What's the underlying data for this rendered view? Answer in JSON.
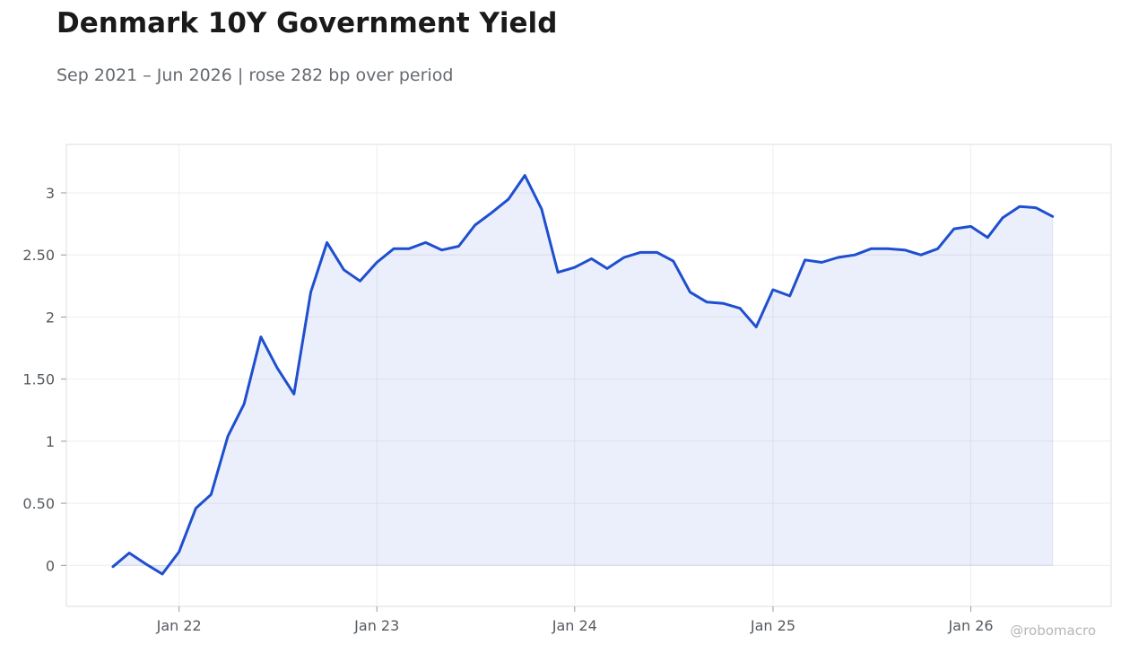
{
  "title": "Denmark 10Y Government Yield",
  "subtitle": "Sep 2021 – Jun 2026 | rose 282 bp over period",
  "watermark": "@robomacro",
  "colors": {
    "line": "#1f4fcf",
    "fill": "#1f4fcf",
    "grid": "#eeeeee",
    "frame": "#dddddd"
  },
  "chart_data": {
    "type": "area",
    "title": "Denmark 10Y Government Yield",
    "xlabel": "",
    "ylabel": "",
    "ylim": [
      -0.33,
      3.39
    ],
    "xlim": [
      "2021-06-07",
      "2026-09-17"
    ],
    "grid": true,
    "yticks": [
      0,
      0.5,
      1,
      1.5,
      2,
      2.5,
      3
    ],
    "ytick_labels": [
      "0",
      "0.50",
      "1",
      "1.50",
      "2",
      "2.50",
      "3"
    ],
    "xticks": [
      "2022-01-01",
      "2023-01-01",
      "2024-01-01",
      "2025-01-01",
      "2026-01-01"
    ],
    "xtick_labels": [
      "Jan 22",
      "Jan 23",
      "Jan 24",
      "Jan 25",
      "Jan 26"
    ],
    "series": [
      {
        "x": [
          "2021-09-01",
          "2021-10-01",
          "2021-11-01",
          "2021-12-01",
          "2022-01-01",
          "2022-02-01",
          "2022-03-01",
          "2022-04-01",
          "2022-05-01",
          "2022-06-01",
          "2022-07-01",
          "2022-08-01",
          "2022-09-01",
          "2022-10-01",
          "2022-11-01",
          "2022-12-01",
          "2023-01-01",
          "2023-02-01",
          "2023-03-01",
          "2023-04-01",
          "2023-05-01",
          "2023-06-01",
          "2023-07-01",
          "2023-08-01",
          "2023-09-01",
          "2023-10-01",
          "2023-11-01",
          "2023-12-01",
          "2024-01-01",
          "2024-02-01",
          "2024-03-01",
          "2024-04-01",
          "2024-05-01",
          "2024-06-01",
          "2024-07-01",
          "2024-08-01",
          "2024-09-01",
          "2024-10-01",
          "2024-11-01",
          "2024-12-01",
          "2025-01-01",
          "2025-02-01",
          "2025-03-01",
          "2025-04-01",
          "2025-05-01",
          "2025-06-01",
          "2025-07-01",
          "2025-08-01",
          "2025-09-01",
          "2025-10-01",
          "2025-11-01",
          "2025-12-01",
          "2026-01-01",
          "2026-02-01",
          "2026-03-01",
          "2026-04-01",
          "2026-05-01",
          "2026-06-01"
        ],
        "values": [
          -0.01,
          0.1,
          0.01,
          -0.07,
          0.11,
          0.46,
          0.57,
          1.04,
          1.3,
          1.84,
          1.59,
          1.38,
          2.2,
          2.6,
          2.38,
          2.29,
          2.44,
          2.55,
          2.55,
          2.6,
          2.54,
          2.57,
          2.74,
          2.84,
          2.95,
          3.14,
          2.87,
          2.36,
          2.4,
          2.47,
          2.39,
          2.48,
          2.52,
          2.52,
          2.45,
          2.2,
          2.12,
          2.11,
          2.07,
          1.92,
          2.22,
          2.17,
          2.46,
          2.44,
          2.48,
          2.5,
          2.55,
          2.55,
          2.54,
          2.5,
          2.55,
          2.71,
          2.73,
          2.64,
          2.8,
          2.89,
          2.88,
          2.81
        ]
      }
    ]
  }
}
